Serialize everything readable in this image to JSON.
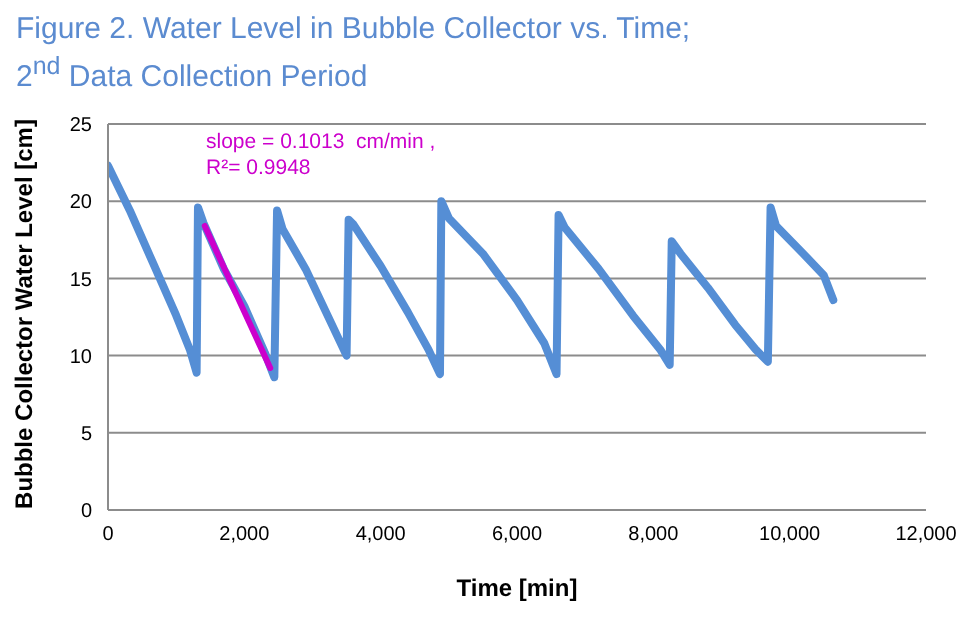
{
  "chart_data": {
    "type": "line",
    "title": "Figure 2. Water Level in Bubble Collector vs. Time;\n2$^{nd}$ Data Collection Period",
    "xlabel": "Time [min]",
    "ylabel": "Bubble Collector Water Level [cm]",
    "annotations": [
      "slope = 0.1013  cm/min ,",
      "R²= 0.9948"
    ],
    "xlim": [
      0,
      12000
    ],
    "xticks": [
      {
        "value": 0,
        "label": "0"
      },
      {
        "value": 2000,
        "label": "2,000"
      },
      {
        "value": 4000,
        "label": "4,000"
      },
      {
        "value": 6000,
        "label": "6,000"
      },
      {
        "value": 8000,
        "label": "8,000"
      },
      {
        "value": 10000,
        "label": "10,000"
      },
      {
        "value": 12000,
        "label": "12,000"
      }
    ],
    "ylim": [
      0,
      25
    ],
    "yticks": [
      0,
      5,
      10,
      15,
      20,
      25
    ],
    "grid": "y",
    "marker": "none",
    "line_style": "solid",
    "series": [
      {
        "color": "#558ed5",
        "x": [
          0,
          320,
          660,
          1000,
          1200,
          1300,
          1320,
          1400,
          1700,
          2000,
          2300,
          2440,
          2480,
          2560,
          2900,
          3200,
          3500,
          3530,
          3600,
          4000,
          4400,
          4700,
          4870,
          4890,
          5000,
          5500,
          6000,
          6400,
          6580,
          6610,
          6700,
          7200,
          7700,
          8100,
          8240,
          8270,
          8400,
          8800,
          9200,
          9500,
          9680,
          9720,
          9800,
          10200,
          10500,
          10640
        ],
        "values": [
          22.3,
          19.4,
          16.0,
          12.6,
          10.4,
          8.9,
          19.6,
          18.6,
          15.6,
          13.2,
          10.2,
          8.6,
          19.4,
          18.2,
          15.6,
          12.8,
          10.0,
          18.8,
          18.5,
          15.8,
          12.8,
          10.4,
          8.8,
          20.0,
          18.9,
          16.6,
          13.6,
          10.8,
          8.8,
          19.1,
          18.3,
          15.6,
          12.6,
          10.4,
          9.4,
          17.4,
          16.6,
          14.4,
          12.0,
          10.4,
          9.6,
          19.6,
          18.4,
          16.6,
          15.2,
          13.6
        ]
      },
      {
        "type": "line",
        "color": "#cc00cc",
        "x": [
          1420,
          2380
        ],
        "values": [
          18.4,
          9.2
        ]
      }
    ]
  }
}
